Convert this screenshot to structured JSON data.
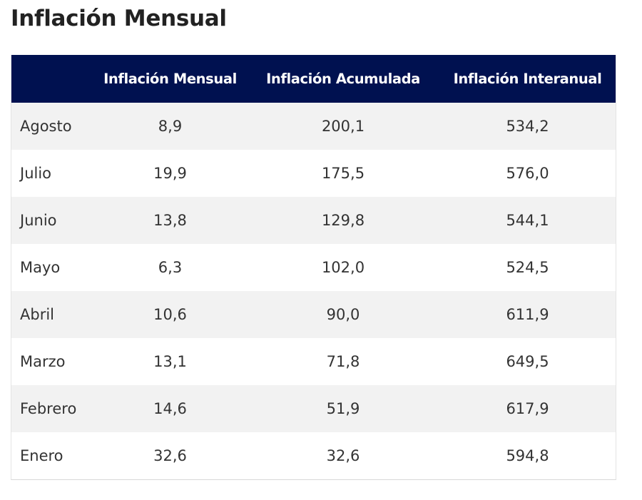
{
  "page": {
    "title": "Inflación Mensual"
  },
  "table": {
    "columns": [
      "",
      "Inflación Mensual",
      "Inflación Acumulada",
      "Inflación Interanual"
    ],
    "rows": [
      {
        "month": "Agosto",
        "mensual": "8,9",
        "acumulada": "200,1",
        "interanual": "534,2"
      },
      {
        "month": "Julio",
        "mensual": "19,9",
        "acumulada": "175,5",
        "interanual": "576,0"
      },
      {
        "month": "Junio",
        "mensual": "13,8",
        "acumulada": "129,8",
        "interanual": "544,1"
      },
      {
        "month": "Mayo",
        "mensual": "6,3",
        "acumulada": "102,0",
        "interanual": "524,5"
      },
      {
        "month": "Abril",
        "mensual": "10,6",
        "acumulada": "90,0",
        "interanual": "611,9"
      },
      {
        "month": "Marzo",
        "mensual": "13,1",
        "acumulada": "71,8",
        "interanual": "649,5"
      },
      {
        "month": "Febrero",
        "mensual": "14,6",
        "acumulada": "51,9",
        "interanual": "617,9"
      },
      {
        "month": "Enero",
        "mensual": "32,6",
        "acumulada": "32,6",
        "interanual": "594,8"
      }
    ]
  },
  "colors": {
    "header_bg": "#001150",
    "header_text": "#ffffff",
    "row_alt_bg": "#f2f2f2",
    "row_bg": "#ffffff"
  }
}
